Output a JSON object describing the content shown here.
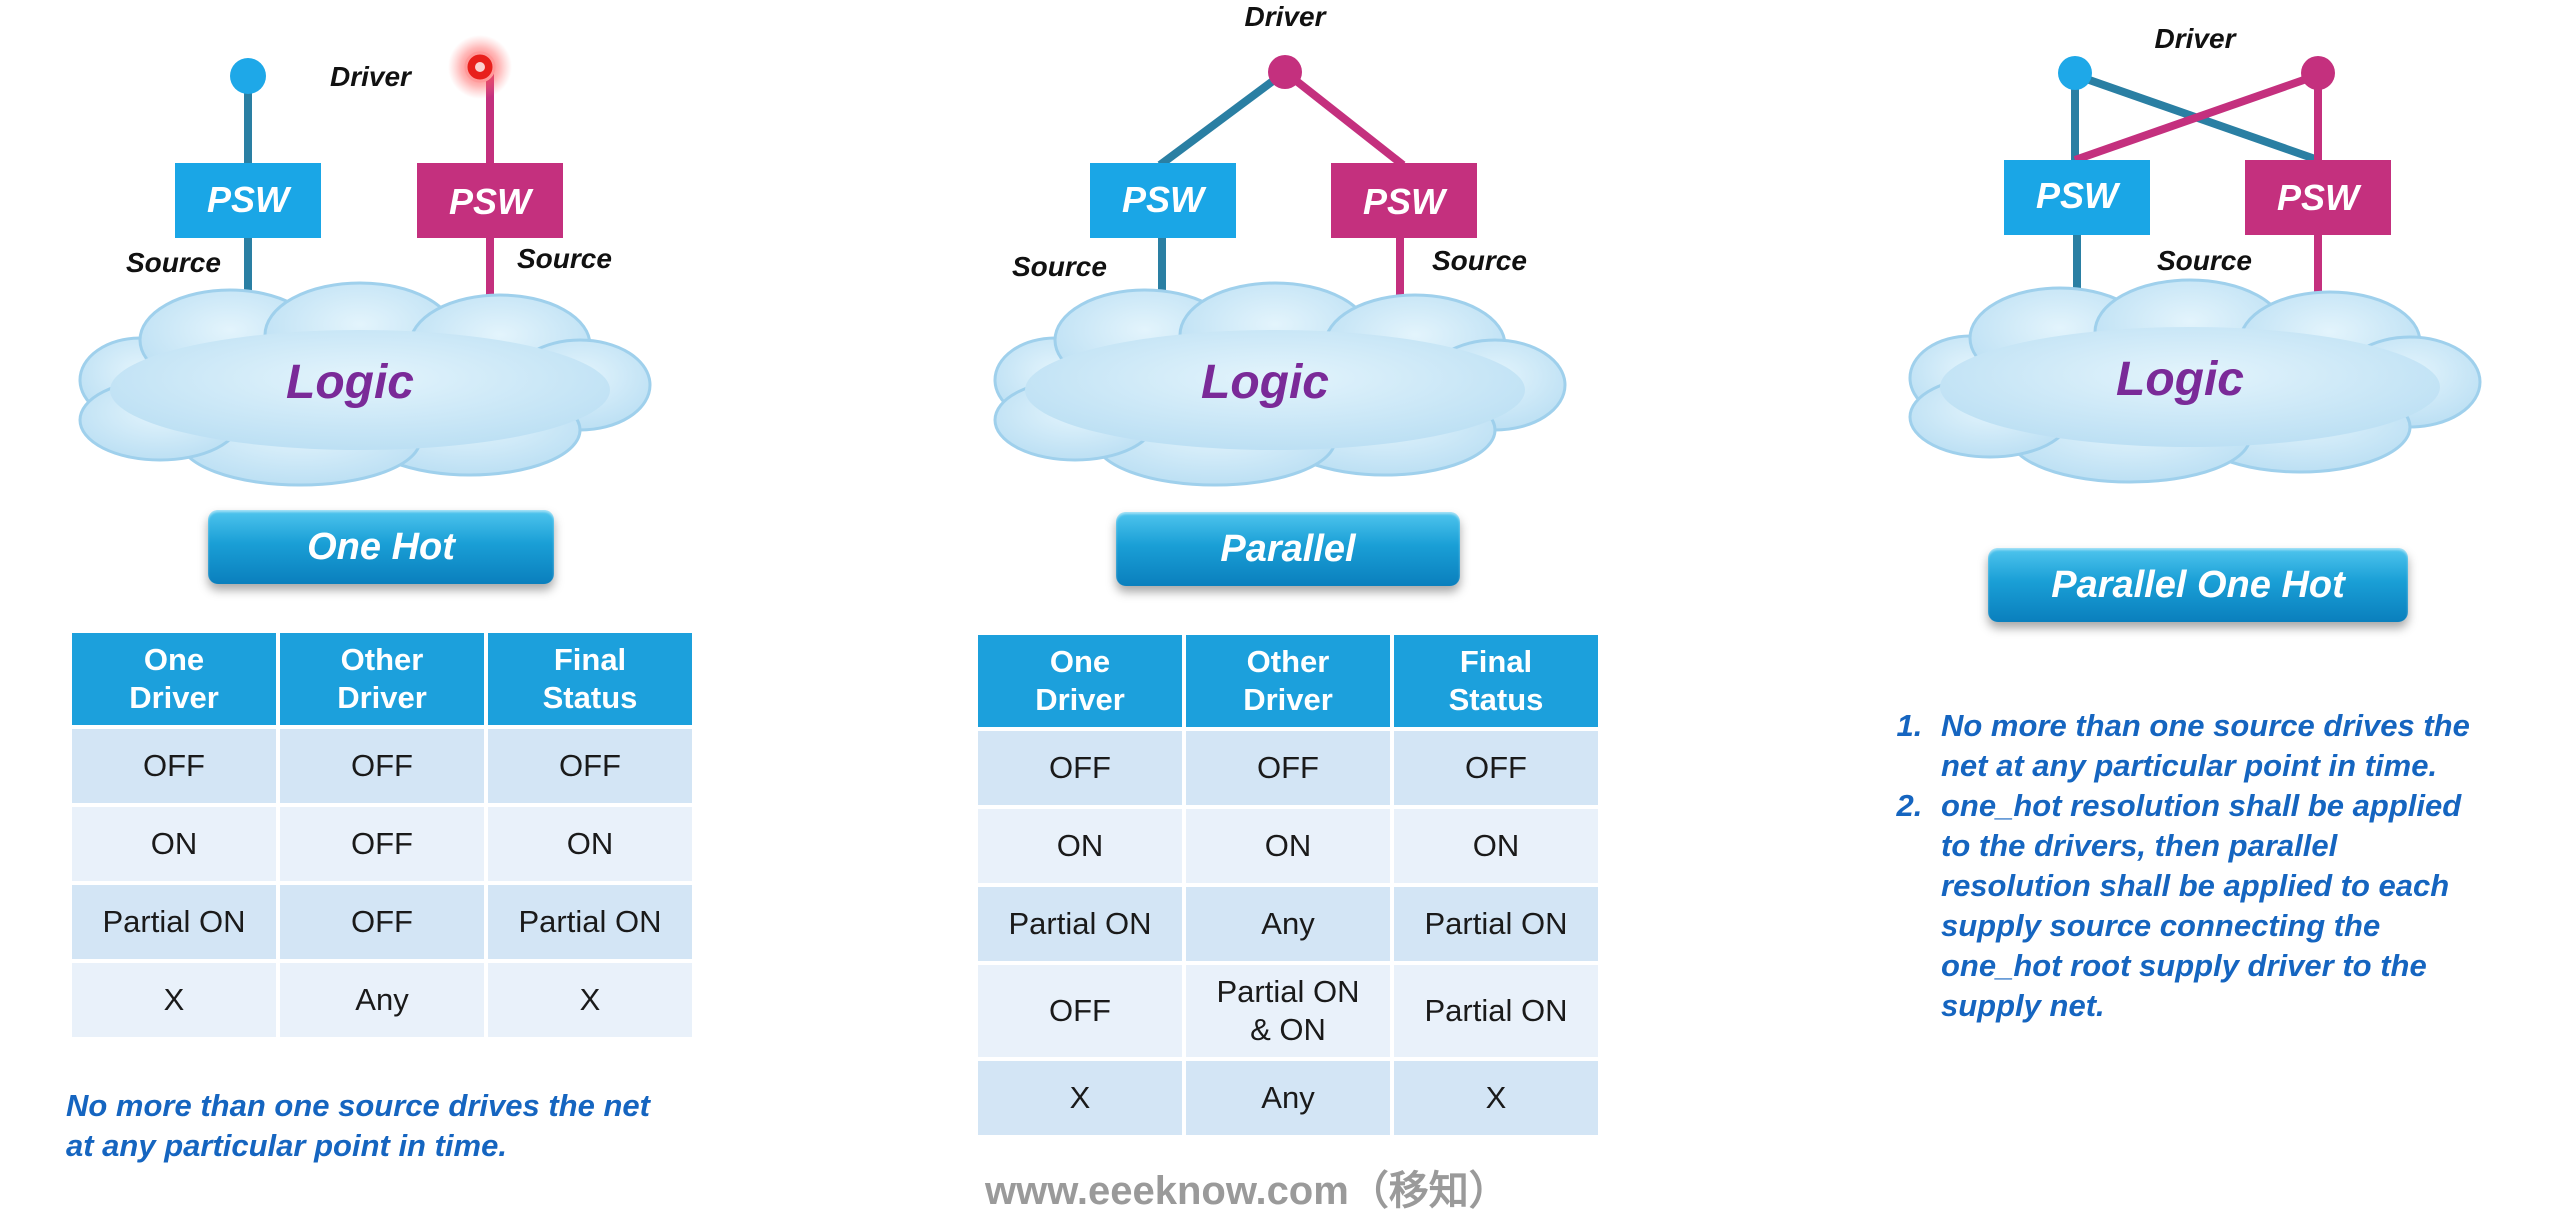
{
  "diagrams": {
    "one_hot": {
      "driver_label": "Driver",
      "left_psw_label": "PSW",
      "right_psw_label": "PSW",
      "left_source_label": "Source",
      "right_source_label": "Source",
      "cloud_label": "Logic",
      "mode_label": "One Hot"
    },
    "parallel": {
      "driver_label": "Driver",
      "left_psw_label": "PSW",
      "right_psw_label": "PSW",
      "left_source_label": "Source",
      "right_source_label": "Source",
      "cloud_label": "Logic",
      "mode_label": "Parallel"
    },
    "parallel_one_hot": {
      "driver_label": "Driver",
      "left_psw_label": "PSW",
      "right_psw_label": "PSW",
      "source_label": "Source",
      "cloud_label": "Logic",
      "mode_label": "Parallel One Hot"
    }
  },
  "one_hot_table": {
    "headers": [
      [
        "One",
        "Driver"
      ],
      [
        "Other",
        "Driver"
      ],
      [
        "Final",
        "Status"
      ]
    ],
    "rows": [
      [
        "OFF",
        "OFF",
        "OFF"
      ],
      [
        "ON",
        "OFF",
        "ON"
      ],
      [
        "Partial ON",
        "OFF",
        "Partial ON"
      ],
      [
        "X",
        "Any",
        "X"
      ]
    ]
  },
  "parallel_table": {
    "headers": [
      [
        "One",
        "Driver"
      ],
      [
        "Other",
        "Driver"
      ],
      [
        "Final",
        "Status"
      ]
    ],
    "rows": [
      [
        "OFF",
        "OFF",
        "OFF"
      ],
      [
        "ON",
        "ON",
        "ON"
      ],
      [
        "Partial ON",
        "Any",
        "Partial ON"
      ],
      [
        "OFF",
        [
          "Partial ON",
          "& ON"
        ],
        "Partial ON"
      ],
      [
        "X",
        "Any",
        "X"
      ]
    ]
  },
  "one_hot_note": [
    "No more than one source drives the net",
    "at any particular point in time."
  ],
  "parallel_one_hot_notes": [
    [
      "No more than one source drives the",
      "net at any particular point in time."
    ],
    [
      "one_hot resolution shall be applied",
      "to the drivers, then parallel",
      "resolution shall be applied to each",
      "supply source connecting the",
      "one_hot root supply driver to the",
      "supply net."
    ]
  ],
  "watermark": "www.eeeknow.com（移知）",
  "colors": {
    "blue_line": "#2a7fa3",
    "blue_box": "#1aa6e6",
    "magenta": "#c4307e",
    "cloud_fill": "#cfeaf8",
    "note_text": "#1565c0",
    "table_header": "#1ca0dc",
    "driver_glow": "#ff2020"
  }
}
